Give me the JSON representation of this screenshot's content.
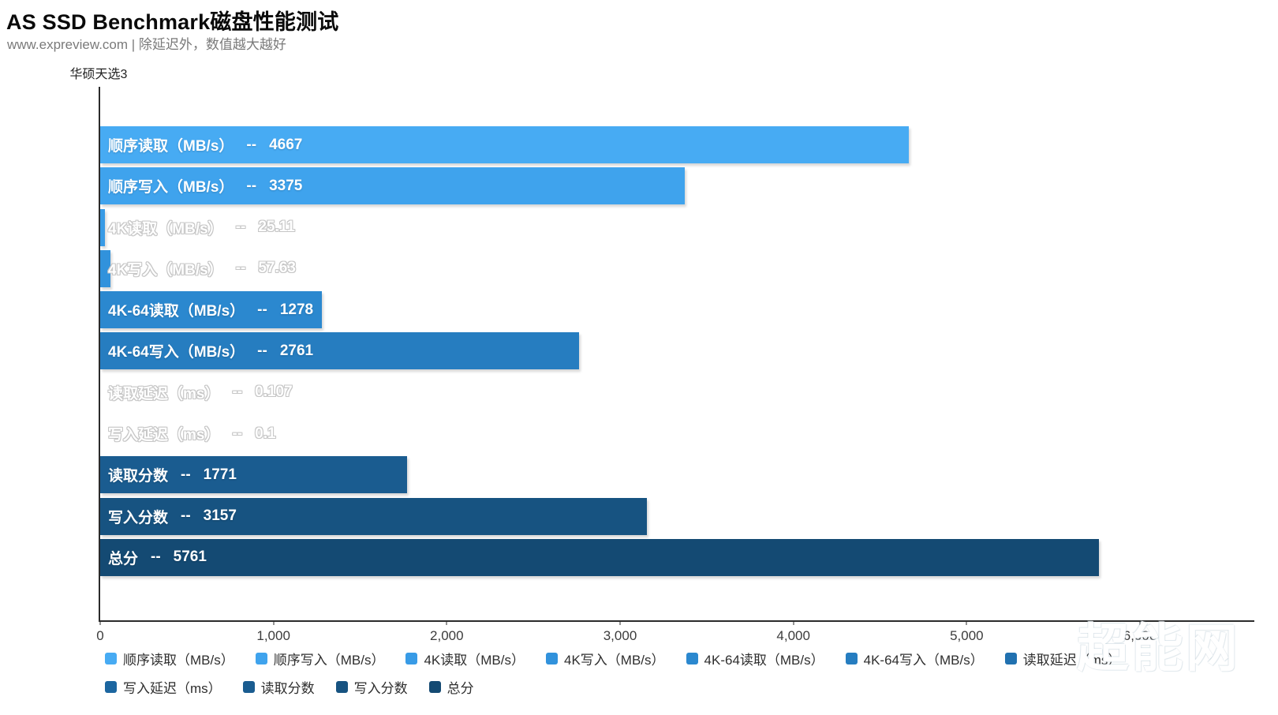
{
  "chart_data": {
    "type": "bar",
    "orientation": "horizontal",
    "title": "AS SSD Benchmark磁盘性能测试",
    "subtitle": "www.expreview.com | 除延迟外，数值越大越好",
    "category": "华硕天选3",
    "separator": "--",
    "xlim": [
      0,
      6660
    ],
    "grid": false,
    "legend_position": "bottom",
    "x_ticks": [
      {
        "label": "0",
        "value": 0
      },
      {
        "label": "1,000",
        "value": 1000
      },
      {
        "label": "2,000",
        "value": 2000
      },
      {
        "label": "3,000",
        "value": 3000
      },
      {
        "label": "4,000",
        "value": 4000
      },
      {
        "label": "5,000",
        "value": 5000
      },
      {
        "label": "6,000",
        "value": 6000
      }
    ],
    "series": [
      {
        "name": "顺序读取（MB/s）",
        "value": 4667,
        "display": "4667",
        "color": "#47ABF3"
      },
      {
        "name": "顺序写入（MB/s）",
        "value": 3375,
        "display": "3375",
        "color": "#3FA3ED"
      },
      {
        "name": "4K读取（MB/s）",
        "value": 25.11,
        "display": "25.11",
        "color": "#389BE6"
      },
      {
        "name": "4K写入（MB/s）",
        "value": 57.63,
        "display": "57.63",
        "color": "#3192DC"
      },
      {
        "name": "4K-64读取（MB/s）",
        "value": 1278,
        "display": "1278",
        "color": "#2B88CF"
      },
      {
        "name": "4K-64写入（MB/s）",
        "value": 2761,
        "display": "2761",
        "color": "#267DC0"
      },
      {
        "name": "读取延迟（ms）",
        "value": 0.107,
        "display": "0.107",
        "color": "#2171B0"
      },
      {
        "name": "写入延迟（ms）",
        "value": 0.1,
        "display": "0.1",
        "color": "#1C66A0"
      },
      {
        "name": "读取分数",
        "value": 1771,
        "display": "1771",
        "color": "#1A5C90"
      },
      {
        "name": "写入分数",
        "value": 3157,
        "display": "3157",
        "color": "#175381"
      },
      {
        "name": "总分",
        "value": 5761,
        "display": "5761",
        "color": "#144A73"
      }
    ],
    "legend_rows": [
      7,
      4
    ],
    "watermark": "超能网"
  }
}
